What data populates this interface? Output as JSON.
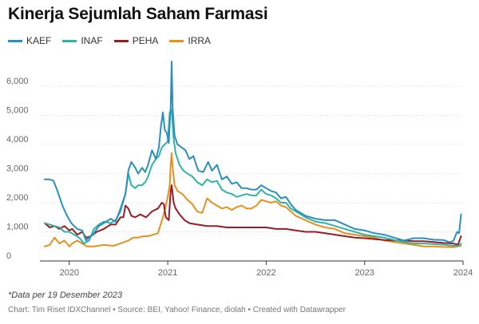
{
  "chart_data": {
    "type": "line",
    "title": "Kinerja Sejumlah Saham Farmasi",
    "xlabel": "",
    "ylabel": "",
    "xlim": [
      2019.75,
      2024.0
    ],
    "ylim": [
      0,
      7000
    ],
    "y_ticks": [
      0,
      1000,
      2000,
      3000,
      4000,
      5000,
      6000
    ],
    "y_tick_labels": [
      "0",
      "1,000",
      "2,000",
      "3,000",
      "4,000",
      "5,000",
      "6,000"
    ],
    "x_ticks": [
      2020,
      2021,
      2022,
      2023,
      2024
    ],
    "x_tick_labels": [
      "2020",
      "2021",
      "2022",
      "2023",
      "2024"
    ],
    "grid": "horizontal",
    "legend": "top-left",
    "series": [
      {
        "name": "KAEF",
        "color": "#2b8fbf",
        "points": [
          [
            2019.75,
            2800
          ],
          [
            2019.8,
            2800
          ],
          [
            2019.84,
            2750
          ],
          [
            2019.88,
            2400
          ],
          [
            2019.93,
            1900
          ],
          [
            2019.97,
            1600
          ],
          [
            2020.02,
            1300
          ],
          [
            2020.08,
            1100
          ],
          [
            2020.13,
            1050
          ],
          [
            2020.17,
            700
          ],
          [
            2020.2,
            800
          ],
          [
            2020.24,
            900
          ],
          [
            2020.3,
            1200
          ],
          [
            2020.35,
            1300
          ],
          [
            2020.42,
            1450
          ],
          [
            2020.47,
            1350
          ],
          [
            2020.52,
            1800
          ],
          [
            2020.57,
            2300
          ],
          [
            2020.6,
            3100
          ],
          [
            2020.63,
            3400
          ],
          [
            2020.67,
            3200
          ],
          [
            2020.7,
            3000
          ],
          [
            2020.74,
            3200
          ],
          [
            2020.77,
            3050
          ],
          [
            2020.8,
            3300
          ],
          [
            2020.84,
            3800
          ],
          [
            2020.88,
            3500
          ],
          [
            2020.91,
            3900
          ],
          [
            2020.93,
            4600
          ],
          [
            2020.95,
            5100
          ],
          [
            2020.97,
            4500
          ],
          [
            2020.99,
            4400
          ],
          [
            2021.01,
            4050
          ],
          [
            2021.03,
            5300
          ],
          [
            2021.04,
            6850
          ],
          [
            2021.05,
            5200
          ],
          [
            2021.07,
            4300
          ],
          [
            2021.1,
            4000
          ],
          [
            2021.14,
            3900
          ],
          [
            2021.18,
            3800
          ],
          [
            2021.22,
            3500
          ],
          [
            2021.26,
            3600
          ],
          [
            2021.31,
            3100
          ],
          [
            2021.36,
            3050
          ],
          [
            2021.41,
            3400
          ],
          [
            2021.45,
            3100
          ],
          [
            2021.5,
            3300
          ],
          [
            2021.55,
            2800
          ],
          [
            2021.6,
            2900
          ],
          [
            2021.65,
            2650
          ],
          [
            2021.7,
            2700
          ],
          [
            2021.75,
            2500
          ],
          [
            2021.8,
            2500
          ],
          [
            2021.85,
            2450
          ],
          [
            2021.9,
            2450
          ],
          [
            2021.95,
            2600
          ],
          [
            2022.0,
            2500
          ],
          [
            2022.05,
            2400
          ],
          [
            2022.1,
            2350
          ],
          [
            2022.15,
            2150
          ],
          [
            2022.2,
            2200
          ],
          [
            2022.25,
            1950
          ],
          [
            2022.3,
            1750
          ],
          [
            2022.4,
            1550
          ],
          [
            2022.5,
            1450
          ],
          [
            2022.6,
            1400
          ],
          [
            2022.7,
            1400
          ],
          [
            2022.8,
            1250
          ],
          [
            2022.9,
            1100
          ],
          [
            2023.0,
            1050
          ],
          [
            2023.1,
            950
          ],
          [
            2023.2,
            900
          ],
          [
            2023.3,
            800
          ],
          [
            2023.4,
            700
          ],
          [
            2023.5,
            780
          ],
          [
            2023.6,
            780
          ],
          [
            2023.7,
            730
          ],
          [
            2023.8,
            720
          ],
          [
            2023.86,
            650
          ],
          [
            2023.9,
            680
          ],
          [
            2023.94,
            1000
          ],
          [
            2023.96,
            950
          ],
          [
            2023.98,
            1600
          ]
        ]
      },
      {
        "name": "INAF",
        "color": "#30b3a5",
        "points": [
          [
            2019.75,
            1300
          ],
          [
            2019.8,
            1250
          ],
          [
            2019.85,
            1200
          ],
          [
            2019.9,
            1150
          ],
          [
            2019.95,
            1000
          ],
          [
            2020.0,
            1000
          ],
          [
            2020.05,
            900
          ],
          [
            2020.1,
            800
          ],
          [
            2020.15,
            600
          ],
          [
            2020.2,
            700
          ],
          [
            2020.25,
            1100
          ],
          [
            2020.3,
            1250
          ],
          [
            2020.35,
            1350
          ],
          [
            2020.42,
            1300
          ],
          [
            2020.47,
            1400
          ],
          [
            2020.52,
            1700
          ],
          [
            2020.57,
            2300
          ],
          [
            2020.6,
            3000
          ],
          [
            2020.63,
            2600
          ],
          [
            2020.67,
            2500
          ],
          [
            2020.7,
            2600
          ],
          [
            2020.74,
            2600
          ],
          [
            2020.77,
            2700
          ],
          [
            2020.8,
            2900
          ],
          [
            2020.84,
            3300
          ],
          [
            2020.88,
            3500
          ],
          [
            2020.91,
            3600
          ],
          [
            2020.94,
            3900
          ],
          [
            2020.97,
            4000
          ],
          [
            2021.0,
            4100
          ],
          [
            2021.02,
            5100
          ],
          [
            2021.04,
            5200
          ],
          [
            2021.06,
            4200
          ],
          [
            2021.08,
            3700
          ],
          [
            2021.12,
            3300
          ],
          [
            2021.16,
            3100
          ],
          [
            2021.2,
            3000
          ],
          [
            2021.25,
            2900
          ],
          [
            2021.3,
            2700
          ],
          [
            2021.35,
            2600
          ],
          [
            2021.4,
            2800
          ],
          [
            2021.45,
            2700
          ],
          [
            2021.5,
            2750
          ],
          [
            2021.55,
            2450
          ],
          [
            2021.6,
            2350
          ],
          [
            2021.65,
            2300
          ],
          [
            2021.7,
            2200
          ],
          [
            2021.75,
            2250
          ],
          [
            2021.8,
            2300
          ],
          [
            2021.85,
            2250
          ],
          [
            2021.9,
            2250
          ],
          [
            2021.95,
            2450
          ],
          [
            2022.0,
            2300
          ],
          [
            2022.05,
            2250
          ],
          [
            2022.1,
            2150
          ],
          [
            2022.15,
            2000
          ],
          [
            2022.2,
            2000
          ],
          [
            2022.25,
            1800
          ],
          [
            2022.3,
            1700
          ],
          [
            2022.4,
            1500
          ],
          [
            2022.5,
            1350
          ],
          [
            2022.6,
            1300
          ],
          [
            2022.7,
            1200
          ],
          [
            2022.8,
            1100
          ],
          [
            2022.9,
            1000
          ],
          [
            2023.0,
            900
          ],
          [
            2023.1,
            850
          ],
          [
            2023.2,
            800
          ],
          [
            2023.3,
            720
          ],
          [
            2023.4,
            650
          ],
          [
            2023.5,
            600
          ],
          [
            2023.6,
            600
          ],
          [
            2023.7,
            580
          ],
          [
            2023.8,
            560
          ],
          [
            2023.9,
            520
          ],
          [
            2023.96,
            520
          ],
          [
            2023.98,
            600
          ]
        ]
      },
      {
        "name": "PEHA",
        "color": "#9c1c24",
        "points": [
          [
            2019.75,
            1300
          ],
          [
            2019.8,
            1150
          ],
          [
            2019.85,
            1200
          ],
          [
            2019.9,
            1100
          ],
          [
            2019.95,
            1200
          ],
          [
            2020.0,
            1050
          ],
          [
            2020.03,
            1100
          ],
          [
            2020.08,
            900
          ],
          [
            2020.13,
            1000
          ],
          [
            2020.17,
            800
          ],
          [
            2020.22,
            850
          ],
          [
            2020.28,
            1000
          ],
          [
            2020.35,
            1100
          ],
          [
            2020.42,
            1250
          ],
          [
            2020.47,
            1250
          ],
          [
            2020.52,
            1500
          ],
          [
            2020.55,
            1500
          ],
          [
            2020.57,
            1900
          ],
          [
            2020.6,
            1800
          ],
          [
            2020.63,
            1550
          ],
          [
            2020.67,
            1500
          ],
          [
            2020.72,
            1600
          ],
          [
            2020.78,
            1500
          ],
          [
            2020.84,
            1700
          ],
          [
            2020.9,
            1800
          ],
          [
            2020.94,
            2000
          ],
          [
            2020.96,
            1950
          ],
          [
            2020.98,
            1500
          ],
          [
            2021.01,
            1400
          ],
          [
            2021.03,
            2400
          ],
          [
            2021.04,
            2600
          ],
          [
            2021.06,
            2000
          ],
          [
            2021.08,
            1800
          ],
          [
            2021.12,
            1600
          ],
          [
            2021.17,
            1400
          ],
          [
            2021.22,
            1300
          ],
          [
            2021.3,
            1250
          ],
          [
            2021.4,
            1200
          ],
          [
            2021.5,
            1200
          ],
          [
            2021.6,
            1150
          ],
          [
            2021.7,
            1150
          ],
          [
            2021.8,
            1150
          ],
          [
            2021.9,
            1150
          ],
          [
            2022.0,
            1150
          ],
          [
            2022.1,
            1100
          ],
          [
            2022.2,
            1100
          ],
          [
            2022.3,
            1050
          ],
          [
            2022.4,
            1000
          ],
          [
            2022.5,
            1000
          ],
          [
            2022.6,
            950
          ],
          [
            2022.7,
            900
          ],
          [
            2022.8,
            850
          ],
          [
            2022.9,
            800
          ],
          [
            2023.0,
            780
          ],
          [
            2023.1,
            750
          ],
          [
            2023.2,
            720
          ],
          [
            2023.3,
            700
          ],
          [
            2023.4,
            700
          ],
          [
            2023.5,
            680
          ],
          [
            2023.6,
            680
          ],
          [
            2023.7,
            650
          ],
          [
            2023.8,
            620
          ],
          [
            2023.9,
            600
          ],
          [
            2023.95,
            560
          ],
          [
            2023.98,
            850
          ]
        ]
      },
      {
        "name": "IRRA",
        "color": "#e8901e",
        "points": [
          [
            2019.75,
            500
          ],
          [
            2019.8,
            550
          ],
          [
            2019.85,
            800
          ],
          [
            2019.9,
            600
          ],
          [
            2019.95,
            700
          ],
          [
            2020.0,
            500
          ],
          [
            2020.03,
            600
          ],
          [
            2020.08,
            700
          ],
          [
            2020.13,
            600
          ],
          [
            2020.18,
            500
          ],
          [
            2020.25,
            500
          ],
          [
            2020.35,
            550
          ],
          [
            2020.45,
            520
          ],
          [
            2020.52,
            600
          ],
          [
            2020.6,
            700
          ],
          [
            2020.65,
            800
          ],
          [
            2020.7,
            800
          ],
          [
            2020.75,
            850
          ],
          [
            2020.8,
            850
          ],
          [
            2020.85,
            900
          ],
          [
            2020.9,
            950
          ],
          [
            2020.95,
            1500
          ],
          [
            2020.98,
            1900
          ],
          [
            2021.0,
            2200
          ],
          [
            2021.02,
            2600
          ],
          [
            2021.03,
            3300
          ],
          [
            2021.04,
            3700
          ],
          [
            2021.05,
            3200
          ],
          [
            2021.07,
            2600
          ],
          [
            2021.1,
            2400
          ],
          [
            2021.15,
            2300
          ],
          [
            2021.2,
            2100
          ],
          [
            2021.25,
            1950
          ],
          [
            2021.3,
            1700
          ],
          [
            2021.35,
            1650
          ],
          [
            2021.4,
            2150
          ],
          [
            2021.45,
            2000
          ],
          [
            2021.5,
            1900
          ],
          [
            2021.55,
            1800
          ],
          [
            2021.6,
            1850
          ],
          [
            2021.65,
            1750
          ],
          [
            2021.7,
            1850
          ],
          [
            2021.75,
            1900
          ],
          [
            2021.8,
            1800
          ],
          [
            2021.85,
            1800
          ],
          [
            2021.9,
            1900
          ],
          [
            2021.95,
            2100
          ],
          [
            2022.0,
            2050
          ],
          [
            2022.05,
            2000
          ],
          [
            2022.1,
            2050
          ],
          [
            2022.15,
            1900
          ],
          [
            2022.2,
            1850
          ],
          [
            2022.25,
            1700
          ],
          [
            2022.3,
            1550
          ],
          [
            2022.4,
            1400
          ],
          [
            2022.5,
            1250
          ],
          [
            2022.6,
            1150
          ],
          [
            2022.7,
            1100
          ],
          [
            2022.8,
            950
          ],
          [
            2022.9,
            900
          ],
          [
            2023.0,
            850
          ],
          [
            2023.1,
            800
          ],
          [
            2023.2,
            700
          ],
          [
            2023.3,
            650
          ],
          [
            2023.4,
            600
          ],
          [
            2023.5,
            550
          ],
          [
            2023.6,
            500
          ],
          [
            2023.7,
            500
          ],
          [
            2023.8,
            480
          ],
          [
            2023.9,
            470
          ],
          [
            2023.98,
            520
          ]
        ]
      }
    ]
  },
  "footer": {
    "note": "*Data per 19 Desember 2023",
    "credit": "Chart: Tim Riset IDXChannel • Source: BEI, Yahoo! Finance, diolah • Created with Datawrapper"
  }
}
